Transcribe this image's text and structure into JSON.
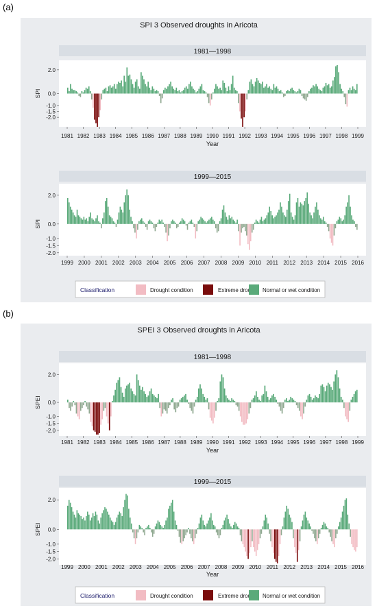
{
  "panels": [
    {
      "label": "(a)",
      "title": "SPI 3 Observed droughts in Aricota",
      "classification_label": "Classification",
      "legend_entries": [
        "Drought condition",
        "Extreme drought",
        "Normal or wet condition"
      ],
      "colors": {
        "drought": "#f2bcc3",
        "extreme": "#7a0c0c",
        "normal": "#5aaa7a",
        "strip": "#d9dee4",
        "plot_bg": "#ebedf0"
      }
    },
    {
      "label": "(b)",
      "title": "SPEI 3 Observed droughts in Aricota",
      "classification_label": "Classification",
      "legend_entries": [
        "Drought condition",
        "Extreme drought",
        "Normal or wet condition"
      ],
      "colors": {
        "drought": "#f2bcc3",
        "extreme": "#7a0c0c",
        "normal": "#5aaa7a",
        "strip": "#d9dee4",
        "plot_bg": "#ebedf0"
      }
    }
  ],
  "chart_data": [
    {
      "type": "bar",
      "title": "1981—1998",
      "xlabel": "Year",
      "ylabel": "SPI",
      "yticks": [
        "2.0",
        "0.0",
        "-1.0",
        "-1.5",
        "-2.0"
      ],
      "ytick_values": [
        2.0,
        0.0,
        -1.0,
        -1.5,
        -2.0
      ],
      "ylim": [
        -2.8,
        2.8
      ],
      "x_start": 1981,
      "x_end": 1998.9,
      "xtick_labels": [
        "1981",
        "1982",
        "1983",
        "1984",
        "1985",
        "1986",
        "1987",
        "1988",
        "1989",
        "1990",
        "1991",
        "1992",
        "1993",
        "1994",
        "1995",
        "1996",
        "1997",
        "1998",
        "1999"
      ],
      "xtick_values": [
        1981,
        1982,
        1983,
        1984,
        1985,
        1986,
        1987,
        1988,
        1989,
        1990,
        1991,
        1992,
        1993,
        1994,
        1995,
        1996,
        1997,
        1998,
        1999
      ],
      "values": [
        0.5,
        0.2,
        0.8,
        0.4,
        0.3,
        0.3,
        0.2,
        0.1,
        -0.2,
        -0.3,
        0.2,
        0.1,
        0.3,
        0.5,
        0.4,
        0.6,
        0.2,
        -0.5,
        -1.2,
        -2.2,
        -2.5,
        -2.8,
        -2.0,
        -1.4,
        -0.5,
        0.3,
        0.4,
        0.5,
        0.2,
        0.6,
        0.7,
        0.5,
        0.6,
        0.8,
        0.4,
        0.8,
        1.0,
        0.9,
        1.1,
        0.6,
        1.5,
        1.0,
        2.2,
        1.5,
        1.6,
        1.2,
        0.8,
        0.5,
        1.0,
        1.2,
        0.6,
        0.4,
        1.8,
        1.5,
        1.2,
        0.8,
        0.6,
        1.0,
        0.5,
        0.3,
        0.6,
        0.4,
        0.2,
        0.3,
        0.2,
        -0.2,
        -0.8,
        -0.4,
        0.3,
        0.5,
        0.4,
        0.6,
        0.8,
        1.0,
        0.6,
        0.4,
        0.3,
        0.5,
        0.2,
        0.3,
        0.1,
        0.2,
        0.3,
        0.5,
        0.6,
        0.4,
        0.8,
        1.0,
        0.6,
        0.4,
        0.3,
        0.1,
        0.2,
        0.4,
        0.6,
        0.8,
        0.3,
        0.2,
        0.1,
        -0.3,
        -0.8,
        -1.0,
        -0.5,
        0.1,
        0.4,
        0.8,
        0.6,
        0.4,
        0.5,
        0.3,
        1.1,
        0.9,
        0.5,
        0.2,
        0.6,
        0.3,
        0.8,
        1.5,
        0.5,
        0.3,
        0.2,
        -0.8,
        -1.5,
        -2.1,
        -2.8,
        -2.0,
        -1.5,
        -0.5,
        0.3,
        1.0,
        1.2,
        0.8,
        0.6,
        1.0,
        1.3,
        1.1,
        0.9,
        0.8,
        1.0,
        0.5,
        0.6,
        0.8,
        0.5,
        0.6,
        0.4,
        0.3,
        0.8,
        0.5,
        0.6,
        0.4,
        0.2,
        0.3,
        0.1,
        -0.3,
        -0.2,
        0.2,
        0.3,
        0.2,
        0.4,
        0.5,
        0.3,
        0.2,
        0.1,
        0.2,
        0.4,
        0.3,
        -0.2,
        -0.4,
        -0.5,
        -0.6,
        -0.3,
        0.2,
        0.4,
        0.5,
        0.7,
        0.6,
        0.8,
        0.6,
        0.4,
        0.3,
        0.2,
        0.5,
        0.6,
        0.9,
        0.7,
        0.8,
        0.5,
        0.6,
        1.1,
        1.4,
        2.3,
        2.4,
        1.8,
        0.8,
        0.4,
        0.2,
        -0.3,
        -0.9,
        -1.1,
        0.3,
        0.5,
        0.3,
        0.6,
        0.4,
        0.3,
        0.8
      ]
    },
    {
      "type": "bar",
      "title": "1999—2015",
      "xlabel": "",
      "ylabel": "SPI",
      "yticks": [
        "2.0",
        "0.0",
        "-1.0",
        "-1.5",
        "-2.0"
      ],
      "ytick_values": [
        2.0,
        0.0,
        -1.0,
        -1.5,
        -2.0
      ],
      "ylim": [
        -2.2,
        2.8
      ],
      "x_start": 1999,
      "x_end": 2015.9,
      "xtick_labels": [
        "1999",
        "2000",
        "2001",
        "2002",
        "2003",
        "2004",
        "2005",
        "2006",
        "2007",
        "2008",
        "2009",
        "2010",
        "2011",
        "2012",
        "2013",
        "2014",
        "2015",
        "2016"
      ],
      "xtick_values": [
        1999,
        2000,
        2001,
        2002,
        2003,
        2004,
        2005,
        2006,
        2007,
        2008,
        2009,
        2010,
        2011,
        2012,
        2013,
        2014,
        2015,
        2016
      ],
      "values": [
        1.8,
        1.5,
        1.2,
        1.0,
        0.8,
        0.6,
        0.5,
        1.0,
        0.6,
        0.5,
        0.4,
        0.3,
        0.5,
        0.3,
        0.4,
        0.2,
        0.5,
        0.8,
        0.4,
        0.3,
        0.2,
        0.4,
        0.6,
        0.2,
        0.1,
        -0.3,
        0.4,
        0.8,
        1.6,
        1.8,
        1.2,
        0.6,
        0.5,
        0.4,
        0.2,
        0.1,
        -0.2,
        0.3,
        0.8,
        1.2,
        1.0,
        0.8,
        1.5,
        2.0,
        2.4,
        2.0,
        1.0,
        0.5,
        0.2,
        -0.3,
        -0.6,
        -1.0,
        -0.4,
        0.2,
        0.3,
        0.4,
        0.2,
        0.1,
        -0.2,
        -0.4,
        0.2,
        0.3,
        0.2,
        0.1,
        -0.3,
        -0.5,
        -0.2,
        0.1,
        0.3,
        0.2,
        0.3,
        0.1,
        -0.2,
        -0.6,
        -1.2,
        -0.8,
        -0.3,
        0.2,
        0.3,
        0.2,
        0.1,
        -0.3,
        -0.2,
        0.1,
        0.2,
        0.4,
        0.3,
        0.2,
        -0.1,
        -0.4,
        0.1,
        0.2,
        0.3,
        0.1,
        -0.2,
        -1.0,
        -0.5,
        0.2,
        0.3,
        0.5,
        0.4,
        0.3,
        0.2,
        0.1,
        0.2,
        0.3,
        0.4,
        0.5,
        0.3,
        0.2,
        -0.3,
        -0.6,
        -0.5,
        0.2,
        0.4,
        1.0,
        1.3,
        0.8,
        0.5,
        0.3,
        0.6,
        0.4,
        0.5,
        0.3,
        0.2,
        0.1,
        0.3,
        -0.5,
        -1.5,
        -0.6,
        -0.3,
        -0.2,
        -0.5,
        -0.8,
        -1.4,
        -1.8,
        -1.2,
        -0.6,
        -0.4,
        0.1,
        0.3,
        0.2,
        0.1,
        0.3,
        0.5,
        0.2,
        0.3,
        0.4,
        0.6,
        0.8,
        1.2,
        0.9,
        0.6,
        0.4,
        0.5,
        0.6,
        0.8,
        1.0,
        1.5,
        1.2,
        0.8,
        0.6,
        0.5,
        1.0,
        1.6,
        2.1,
        0.8,
        0.5,
        0.3,
        0.6,
        1.5,
        1.8,
        1.2,
        1.5,
        1.4,
        1.3,
        1.6,
        1.8,
        2.2,
        1.4,
        0.8,
        0.6,
        0.4,
        0.8,
        1.2,
        1.5,
        1.0,
        0.6,
        0.4,
        0.3,
        0.5,
        0.2,
        0.1,
        -0.2,
        -0.5,
        -1.0,
        -1.3,
        -1.5,
        -0.8,
        -0.3,
        0.2,
        0.3,
        0.5,
        0.4,
        0.2,
        0.3,
        0.6,
        1.2,
        1.5,
        2.0,
        1.2,
        0.6,
        0.3,
        0.2,
        -0.2,
        -0.4
      ]
    },
    {
      "type": "bar",
      "title": "1981—1998",
      "xlabel": "Year",
      "ylabel": "SPEI",
      "yticks": [
        "2.0",
        "0.0",
        "-1.0",
        "-1.5",
        "-2.0"
      ],
      "ytick_values": [
        2.0,
        0.0,
        -1.0,
        -1.5,
        -2.0
      ],
      "ylim": [
        -2.4,
        2.8
      ],
      "x_start": 1981,
      "x_end": 1998.9,
      "xtick_labels": [
        "1981",
        "1982",
        "1983",
        "1984",
        "1985",
        "1986",
        "1987",
        "1988",
        "1989",
        "1990",
        "1991",
        "1992",
        "1993",
        "1994",
        "1995",
        "1996",
        "1997",
        "1998",
        "1999"
      ],
      "xtick_values": [
        1981,
        1982,
        1983,
        1984,
        1985,
        1986,
        1987,
        1988,
        1989,
        1990,
        1991,
        1992,
        1993,
        1994,
        1995,
        1996,
        1997,
        1998,
        1999
      ],
      "values": [
        0.2,
        -0.4,
        -0.6,
        -0.3,
        0.1,
        -0.2,
        -0.8,
        -1.0,
        -1.2,
        -0.6,
        -0.4,
        -0.2,
        0.1,
        -0.3,
        -0.5,
        -0.8,
        -1.4,
        -1.7,
        -2.0,
        -2.1,
        -2.3,
        -2.3,
        -2.2,
        -1.6,
        -1.2,
        -0.6,
        -0.4,
        -1.0,
        -1.5,
        -2.0,
        -1.0,
        0.1,
        0.5,
        0.9,
        1.4,
        1.6,
        1.8,
        1.1,
        0.7,
        0.4,
        1.0,
        1.2,
        1.3,
        1.4,
        1.0,
        0.8,
        0.6,
        0.5,
        2.0,
        1.6,
        1.2,
        0.9,
        1.1,
        0.8,
        0.6,
        0.4,
        0.5,
        0.8,
        1.0,
        0.6,
        0.5,
        0.4,
        0.3,
        0.6,
        -0.4,
        -1.0,
        -0.8,
        -0.5,
        -0.6,
        -0.8,
        -0.4,
        -0.2,
        0.2,
        0.3,
        -0.5,
        -0.7,
        -0.4,
        -0.3,
        0.2,
        0.3,
        0.4,
        0.5,
        0.6,
        0.2,
        -0.1,
        -0.4,
        -0.6,
        -0.8,
        -0.3,
        0.2,
        0.4,
        1.0,
        1.3,
        1.0,
        0.6,
        0.4,
        0.2,
        0.3,
        -0.5,
        -1.1,
        -1.3,
        -1.5,
        -1.1,
        -0.6,
        0.1,
        0.3,
        1.5,
        2.0,
        1.8,
        1.0,
        0.5,
        0.3,
        0.2,
        0.1,
        0.3,
        0.2,
        0.1,
        -0.2,
        -0.3,
        -0.6,
        -1.0,
        -1.4,
        -1.6,
        -1.6,
        -1.5,
        -1.2,
        -0.8,
        -0.4,
        0.2,
        0.3,
        0.5,
        0.8,
        0.4,
        0.2,
        0.1,
        0.5,
        0.6,
        1.2,
        0.8,
        0.4,
        0.2,
        0.3,
        0.5,
        0.6,
        0.4,
        0.2,
        -0.1,
        -0.3,
        -0.6,
        -0.8,
        -0.4,
        0.2,
        0.3,
        0.1,
        0.2,
        0.4,
        0.3,
        0.2,
        0.1,
        -0.2,
        -0.4,
        -0.6,
        -1.0,
        -1.2,
        -0.8,
        -0.3,
        0.2,
        0.5,
        0.6,
        0.4,
        0.2,
        0.3,
        0.5,
        0.4,
        0.3,
        0.6,
        1.2,
        1.3,
        1.1,
        0.8,
        1.2,
        1.4,
        1.3,
        1.1,
        0.9,
        1.5,
        2.0,
        2.3,
        1.8,
        1.0,
        0.4,
        0.2,
        -0.4,
        -1.0,
        -1.2,
        -1.4,
        -0.6,
        0.2,
        0.4,
        0.6,
        0.8,
        0.9
      ]
    },
    {
      "type": "bar",
      "title": "1999—2015",
      "xlabel": "Year",
      "ylabel": "SPEI",
      "yticks": [
        "2.0",
        "0.0",
        "-1.0",
        "-1.5",
        "-2.0"
      ],
      "ytick_values": [
        2.0,
        0.0,
        -1.0,
        -1.5,
        -2.0
      ],
      "ylim": [
        -2.4,
        2.8
      ],
      "x_start": 1999,
      "x_end": 2015.9,
      "xtick_labels": [
        "1999",
        "2000",
        "2001",
        "2002",
        "2003",
        "2004",
        "2005",
        "2006",
        "2007",
        "2008",
        "2009",
        "2010",
        "2011",
        "2012",
        "2013",
        "2014",
        "2015",
        "2016"
      ],
      "xtick_values": [
        1999,
        2000,
        2001,
        2002,
        2003,
        2004,
        2005,
        2006,
        2007,
        2008,
        2009,
        2010,
        2011,
        2012,
        2013,
        2014,
        2015,
        2016
      ],
      "values": [
        1.6,
        2.0,
        1.8,
        1.5,
        1.2,
        1.0,
        0.8,
        1.3,
        1.1,
        1.0,
        0.9,
        0.7,
        0.8,
        0.6,
        0.9,
        1.2,
        1.0,
        0.6,
        0.8,
        1.1,
        0.9,
        1.2,
        1.0,
        0.6,
        0.4,
        0.8,
        1.1,
        1.3,
        1.5,
        1.4,
        1.2,
        1.0,
        0.8,
        0.6,
        0.5,
        0.3,
        0.5,
        0.8,
        1.0,
        1.2,
        1.1,
        0.9,
        1.5,
        2.0,
        2.4,
        2.3,
        1.4,
        0.8,
        0.4,
        -0.2,
        -0.6,
        -1.0,
        -0.6,
        -0.2,
        0.3,
        0.2,
        0.1,
        -0.2,
        -0.4,
        0.1,
        0.2,
        0.3,
        0.1,
        -0.2,
        -0.5,
        -0.3,
        0.2,
        0.4,
        0.6,
        0.5,
        0.3,
        0.2,
        0.1,
        0.3,
        0.6,
        0.8,
        1.4,
        1.6,
        1.8,
        2.0,
        1.2,
        0.6,
        0.3,
        -0.1,
        -0.5,
        -0.9,
        -1.0,
        -0.8,
        -0.6,
        -0.4,
        -0.2,
        0.1,
        -0.3,
        -0.6,
        -0.8,
        -1.0,
        -0.6,
        -0.3,
        0.1,
        0.4,
        0.8,
        1.0,
        0.6,
        0.3,
        0.2,
        0.4,
        0.6,
        0.8,
        1.1,
        0.6,
        0.3,
        0.2,
        -0.2,
        -0.4,
        -0.6,
        -0.4,
        0.1,
        0.3,
        0.6,
        0.8,
        1.0,
        0.7,
        0.4,
        0.2,
        0.1,
        0.3,
        0.5,
        0.4,
        0.2,
        0.1,
        -0.4,
        -0.8,
        -1.0,
        -1.2,
        -1.5,
        -1.8,
        -2.0,
        -1.6,
        -1.2,
        -0.8,
        -1.2,
        -1.5,
        -1.8,
        -1.4,
        -1.0,
        -0.6,
        -0.3,
        0.2,
        0.6,
        1.0,
        0.8,
        0.4,
        -0.3,
        -0.8,
        -1.2,
        -1.6,
        -2.0,
        -2.2,
        -2.3,
        -1.8,
        -1.0,
        -0.4,
        0.2,
        0.8,
        1.2,
        1.6,
        1.4,
        1.0,
        0.8,
        0.5,
        -0.6,
        -1.2,
        -1.6,
        -2.2,
        -1.4,
        -0.8,
        0.2,
        0.6,
        1.0,
        1.2,
        0.8,
        0.6,
        0.4,
        0.2,
        -0.1,
        -0.3,
        -0.6,
        -0.8,
        -1.0,
        -0.6,
        -0.3,
        0.1,
        0.3,
        0.5,
        0.4,
        0.2,
        0.1,
        -0.2,
        -0.5,
        -0.8,
        -1.0,
        -1.2,
        -0.6,
        -0.3,
        0.2,
        0.5,
        0.8,
        1.2,
        1.6,
        2.0,
        2.1,
        1.0,
        0.4,
        -0.5,
        -1.0,
        -1.2,
        -1.4,
        -1.5,
        -1.2
      ]
    }
  ]
}
